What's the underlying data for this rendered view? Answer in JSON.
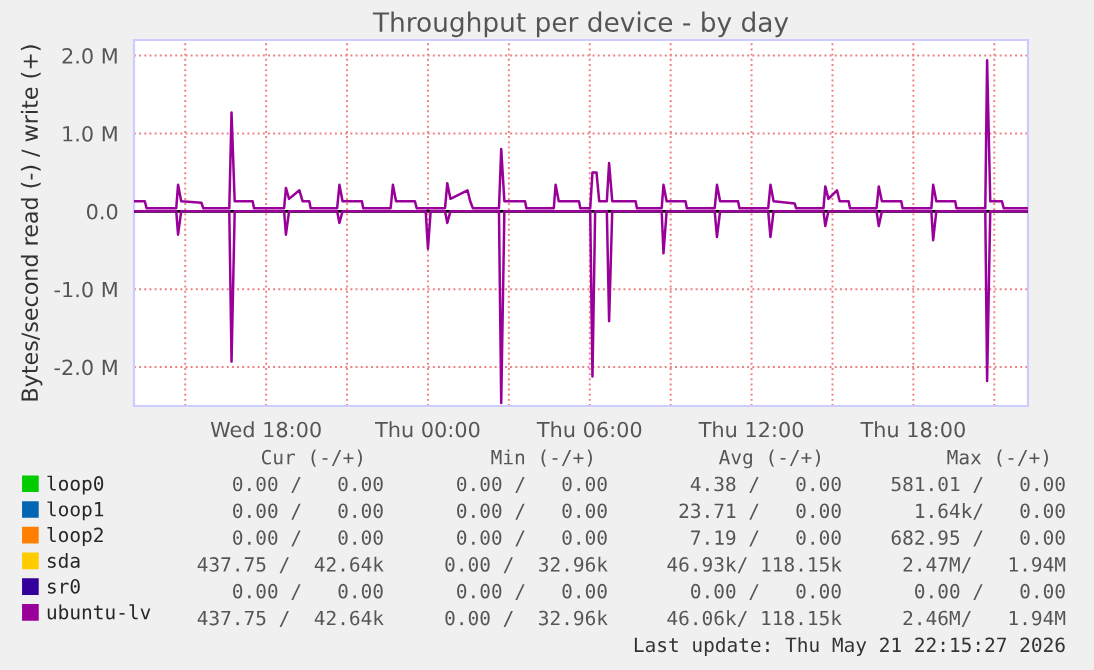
{
  "chart_data": {
    "type": "line",
    "title": "Throughput per device - by day",
    "ylabel": "Bytes/second read (-) / write (+)",
    "xlim": [
      "2026-05-20T13:06",
      "2026-05-21T22:15"
    ],
    "xticks": [
      {
        "value": "2026-05-20T15:00",
        "label": null
      },
      {
        "value": "2026-05-20T18:00",
        "label": "Wed 18:00"
      },
      {
        "value": "2026-05-20T21:00",
        "label": null
      },
      {
        "value": "2026-05-21T00:00",
        "label": "Thu 00:00"
      },
      {
        "value": "2026-05-21T03:00",
        "label": null
      },
      {
        "value": "2026-05-21T06:00",
        "label": "Thu 06:00"
      },
      {
        "value": "2026-05-21T09:00",
        "label": null
      },
      {
        "value": "2026-05-21T12:00",
        "label": "Thu 12:00"
      },
      {
        "value": "2026-05-21T15:00",
        "label": null
      },
      {
        "value": "2026-05-21T18:00",
        "label": "Thu 18:00"
      },
      {
        "value": "2026-05-21T21:00",
        "label": null
      }
    ],
    "ylim": [
      -2.5,
      2.2
    ],
    "yticks": [
      {
        "value": -2,
        "label": "-2.0 M"
      },
      {
        "value": -1,
        "label": "-1.0 M"
      },
      {
        "value": 0,
        "label": "0.0"
      },
      {
        "value": 1,
        "label": "1.0 M"
      },
      {
        "value": 2,
        "label": "2.0 M"
      }
    ],
    "grid": true,
    "legend": "bottom left",
    "marker": "none",
    "line_style": "solid",
    "ref_lines": [
      {
        "axis": "y",
        "value": 0,
        "color": "#000000",
        "line_style": "solid"
      }
    ],
    "series": [
      {
        "name": "loop0",
        "color": "#00cc00"
      },
      {
        "name": "loop1",
        "color": "#0066b3"
      },
      {
        "name": "loop2",
        "color": "#ff8000"
      },
      {
        "name": "sda",
        "color": "#ffcc00"
      },
      {
        "name": "sr0",
        "color": "#330099"
      },
      {
        "color": "#990099",
        "x": [
          "2026-05-20T13:07",
          "2026-05-20T14:40",
          "2026-05-20T14:44",
          "2026-05-20T14:51",
          "2026-05-20T16:38",
          "2026-05-20T16:43",
          "2026-05-20T16:50",
          "2026-05-20T18:40",
          "2026-05-20T18:44",
          "2026-05-20T18:51",
          "2026-05-20T20:38",
          "2026-05-20T20:43",
          "2026-05-20T20:50",
          "2026-05-20T23:55",
          "2026-05-21T00:00",
          "2026-05-21T00:06",
          "2026-05-21T00:38",
          "2026-05-21T00:43",
          "2026-05-21T00:50",
          "2026-05-21T02:38",
          "2026-05-21T02:43",
          "2026-05-21T02:50",
          "2026-05-21T06:01",
          "2026-05-21T06:06",
          "2026-05-21T06:12",
          "2026-05-21T06:38",
          "2026-05-21T06:43",
          "2026-05-21T06:50",
          "2026-05-21T08:40",
          "2026-05-21T08:44",
          "2026-05-21T08:51",
          "2026-05-21T10:38",
          "2026-05-21T10:43",
          "2026-05-21T10:50",
          "2026-05-21T12:37",
          "2026-05-21T12:42",
          "2026-05-21T12:49",
          "2026-05-21T14:40",
          "2026-05-21T14:44",
          "2026-05-21T14:51",
          "2026-05-21T16:38",
          "2026-05-21T16:43",
          "2026-05-21T16:50",
          "2026-05-21T18:40",
          "2026-05-21T18:44",
          "2026-05-21T18:51",
          "2026-05-21T20:40",
          "2026-05-21T20:44",
          "2026-05-21T20:51",
          "2026-05-21T22:13"
        ],
        "values": [
          0,
          0,
          -0.3,
          0,
          0,
          -1.93,
          0,
          0,
          -0.3,
          0,
          0,
          -0.15,
          0,
          0,
          -0.48,
          0,
          0,
          -0.15,
          0,
          0,
          -2.46,
          0,
          0,
          -2.12,
          0,
          0,
          -1.41,
          0,
          0,
          -0.54,
          0,
          0,
          -0.33,
          0,
          0,
          -0.33,
          0,
          0,
          -0.19,
          0,
          0,
          -0.19,
          0,
          0,
          -0.37,
          0,
          0,
          -2.18,
          0,
          0
        ]
      },
      {
        "name": "ubuntu-lv",
        "color": "#990099",
        "x": [
          "2026-05-20T13:07",
          "2026-05-20T13:30",
          "2026-05-20T13:34",
          "2026-05-20T14:40",
          "2026-05-20T14:44",
          "2026-05-20T14:51",
          "2026-05-20T15:36",
          "2026-05-20T15:40",
          "2026-05-20T16:38",
          "2026-05-20T16:43",
          "2026-05-20T16:50",
          "2026-05-20T17:30",
          "2026-05-20T17:33",
          "2026-05-20T18:40",
          "2026-05-20T18:44",
          "2026-05-20T18:51",
          "2026-05-20T19:14",
          "2026-05-20T19:21",
          "2026-05-20T19:36",
          "2026-05-20T19:39",
          "2026-05-20T20:38",
          "2026-05-20T20:43",
          "2026-05-20T20:50",
          "2026-05-20T21:33",
          "2026-05-20T21:36",
          "2026-05-20T22:37",
          "2026-05-20T22:42",
          "2026-05-20T22:49",
          "2026-05-20T23:31",
          "2026-05-20T23:35",
          "2026-05-21T00:38",
          "2026-05-21T00:43",
          "2026-05-21T00:50",
          "2026-05-21T01:28",
          "2026-05-21T01:34",
          "2026-05-21T01:40",
          "2026-05-21T02:38",
          "2026-05-21T02:43",
          "2026-05-21T02:50",
          "2026-05-21T03:36",
          "2026-05-21T03:39",
          "2026-05-21T04:40",
          "2026-05-21T04:44",
          "2026-05-21T04:51",
          "2026-05-21T05:36",
          "2026-05-21T05:39",
          "2026-05-21T06:01",
          "2026-05-21T06:06",
          "2026-05-21T06:15",
          "2026-05-21T06:21",
          "2026-05-21T06:38",
          "2026-05-21T06:43",
          "2026-05-21T06:50",
          "2026-05-21T07:42",
          "2026-05-21T07:45",
          "2026-05-21T08:40",
          "2026-05-21T08:44",
          "2026-05-21T08:51",
          "2026-05-21T09:33",
          "2026-05-21T09:36",
          "2026-05-21T10:38",
          "2026-05-21T10:43",
          "2026-05-21T10:50",
          "2026-05-21T11:30",
          "2026-05-21T11:33",
          "2026-05-21T12:37",
          "2026-05-21T12:42",
          "2026-05-21T12:49",
          "2026-05-21T13:36",
          "2026-05-21T13:39",
          "2026-05-21T14:40",
          "2026-05-21T14:44",
          "2026-05-21T14:51",
          "2026-05-21T15:10",
          "2026-05-21T15:16",
          "2026-05-21T15:36",
          "2026-05-21T15:39",
          "2026-05-21T16:38",
          "2026-05-21T16:43",
          "2026-05-21T16:50",
          "2026-05-21T17:33",
          "2026-05-21T17:36",
          "2026-05-21T18:40",
          "2026-05-21T18:44",
          "2026-05-21T18:51",
          "2026-05-21T19:33",
          "2026-05-21T19:36",
          "2026-05-21T20:40",
          "2026-05-21T20:44",
          "2026-05-21T20:51",
          "2026-05-21T21:17",
          "2026-05-21T21:21",
          "2026-05-21T22:13"
        ],
        "values": [
          0.13,
          0.13,
          0.04,
          0.04,
          0.34,
          0.13,
          0.11,
          0.04,
          0.04,
          1.27,
          0.13,
          0.13,
          0.04,
          0.04,
          0.3,
          0.16,
          0.27,
          0.13,
          0.13,
          0.04,
          0.04,
          0.34,
          0.13,
          0.13,
          0.04,
          0.04,
          0.34,
          0.13,
          0.13,
          0.04,
          0.04,
          0.36,
          0.16,
          0.27,
          0.13,
          0.04,
          0.04,
          0.8,
          0.13,
          0.13,
          0.04,
          0.04,
          0.34,
          0.13,
          0.13,
          0.04,
          0.04,
          0.5,
          0.5,
          0.13,
          0.13,
          0.62,
          0.13,
          0.13,
          0.04,
          0.04,
          0.34,
          0.13,
          0.13,
          0.04,
          0.04,
          0.34,
          0.13,
          0.13,
          0.04,
          0.04,
          0.34,
          0.13,
          0.1,
          0.04,
          0.04,
          0.32,
          0.16,
          0.27,
          0.13,
          0.13,
          0.04,
          0.04,
          0.32,
          0.13,
          0.13,
          0.04,
          0.04,
          0.34,
          0.13,
          0.13,
          0.04,
          0.04,
          1.94,
          0.13,
          0.13,
          0.04,
          0.04
        ]
      }
    ],
    "annotations": [
      "Cur (-/+)",
      "Min (-/+)",
      "Avg (-/+)",
      "Max (-/+)",
      "0.00 /   0.00",
      "0.00 /   0.00",
      "4.38 /   0.00",
      "581.01 /   0.00",
      "0.00 /   0.00",
      "0.00 /   0.00",
      "23.71 /   0.00",
      "1.64k/   0.00",
      "0.00 /   0.00",
      "0.00 /   0.00",
      "7.19 /   0.00",
      "682.95 /   0.00",
      "437.75 /  42.64k",
      "0.00 /  32.96k",
      "46.93k/ 118.15k",
      "2.47M/   1.94M",
      "0.00 /   0.00",
      "0.00 /   0.00",
      "0.00 /   0.00",
      "0.00 /   0.00",
      "437.75 /  42.64k",
      "0.00 /  32.96k",
      "46.06k/ 118.15k",
      "2.46M/   1.94M",
      "Last update: Thu May 21 22:15:27 2026"
    ]
  }
}
